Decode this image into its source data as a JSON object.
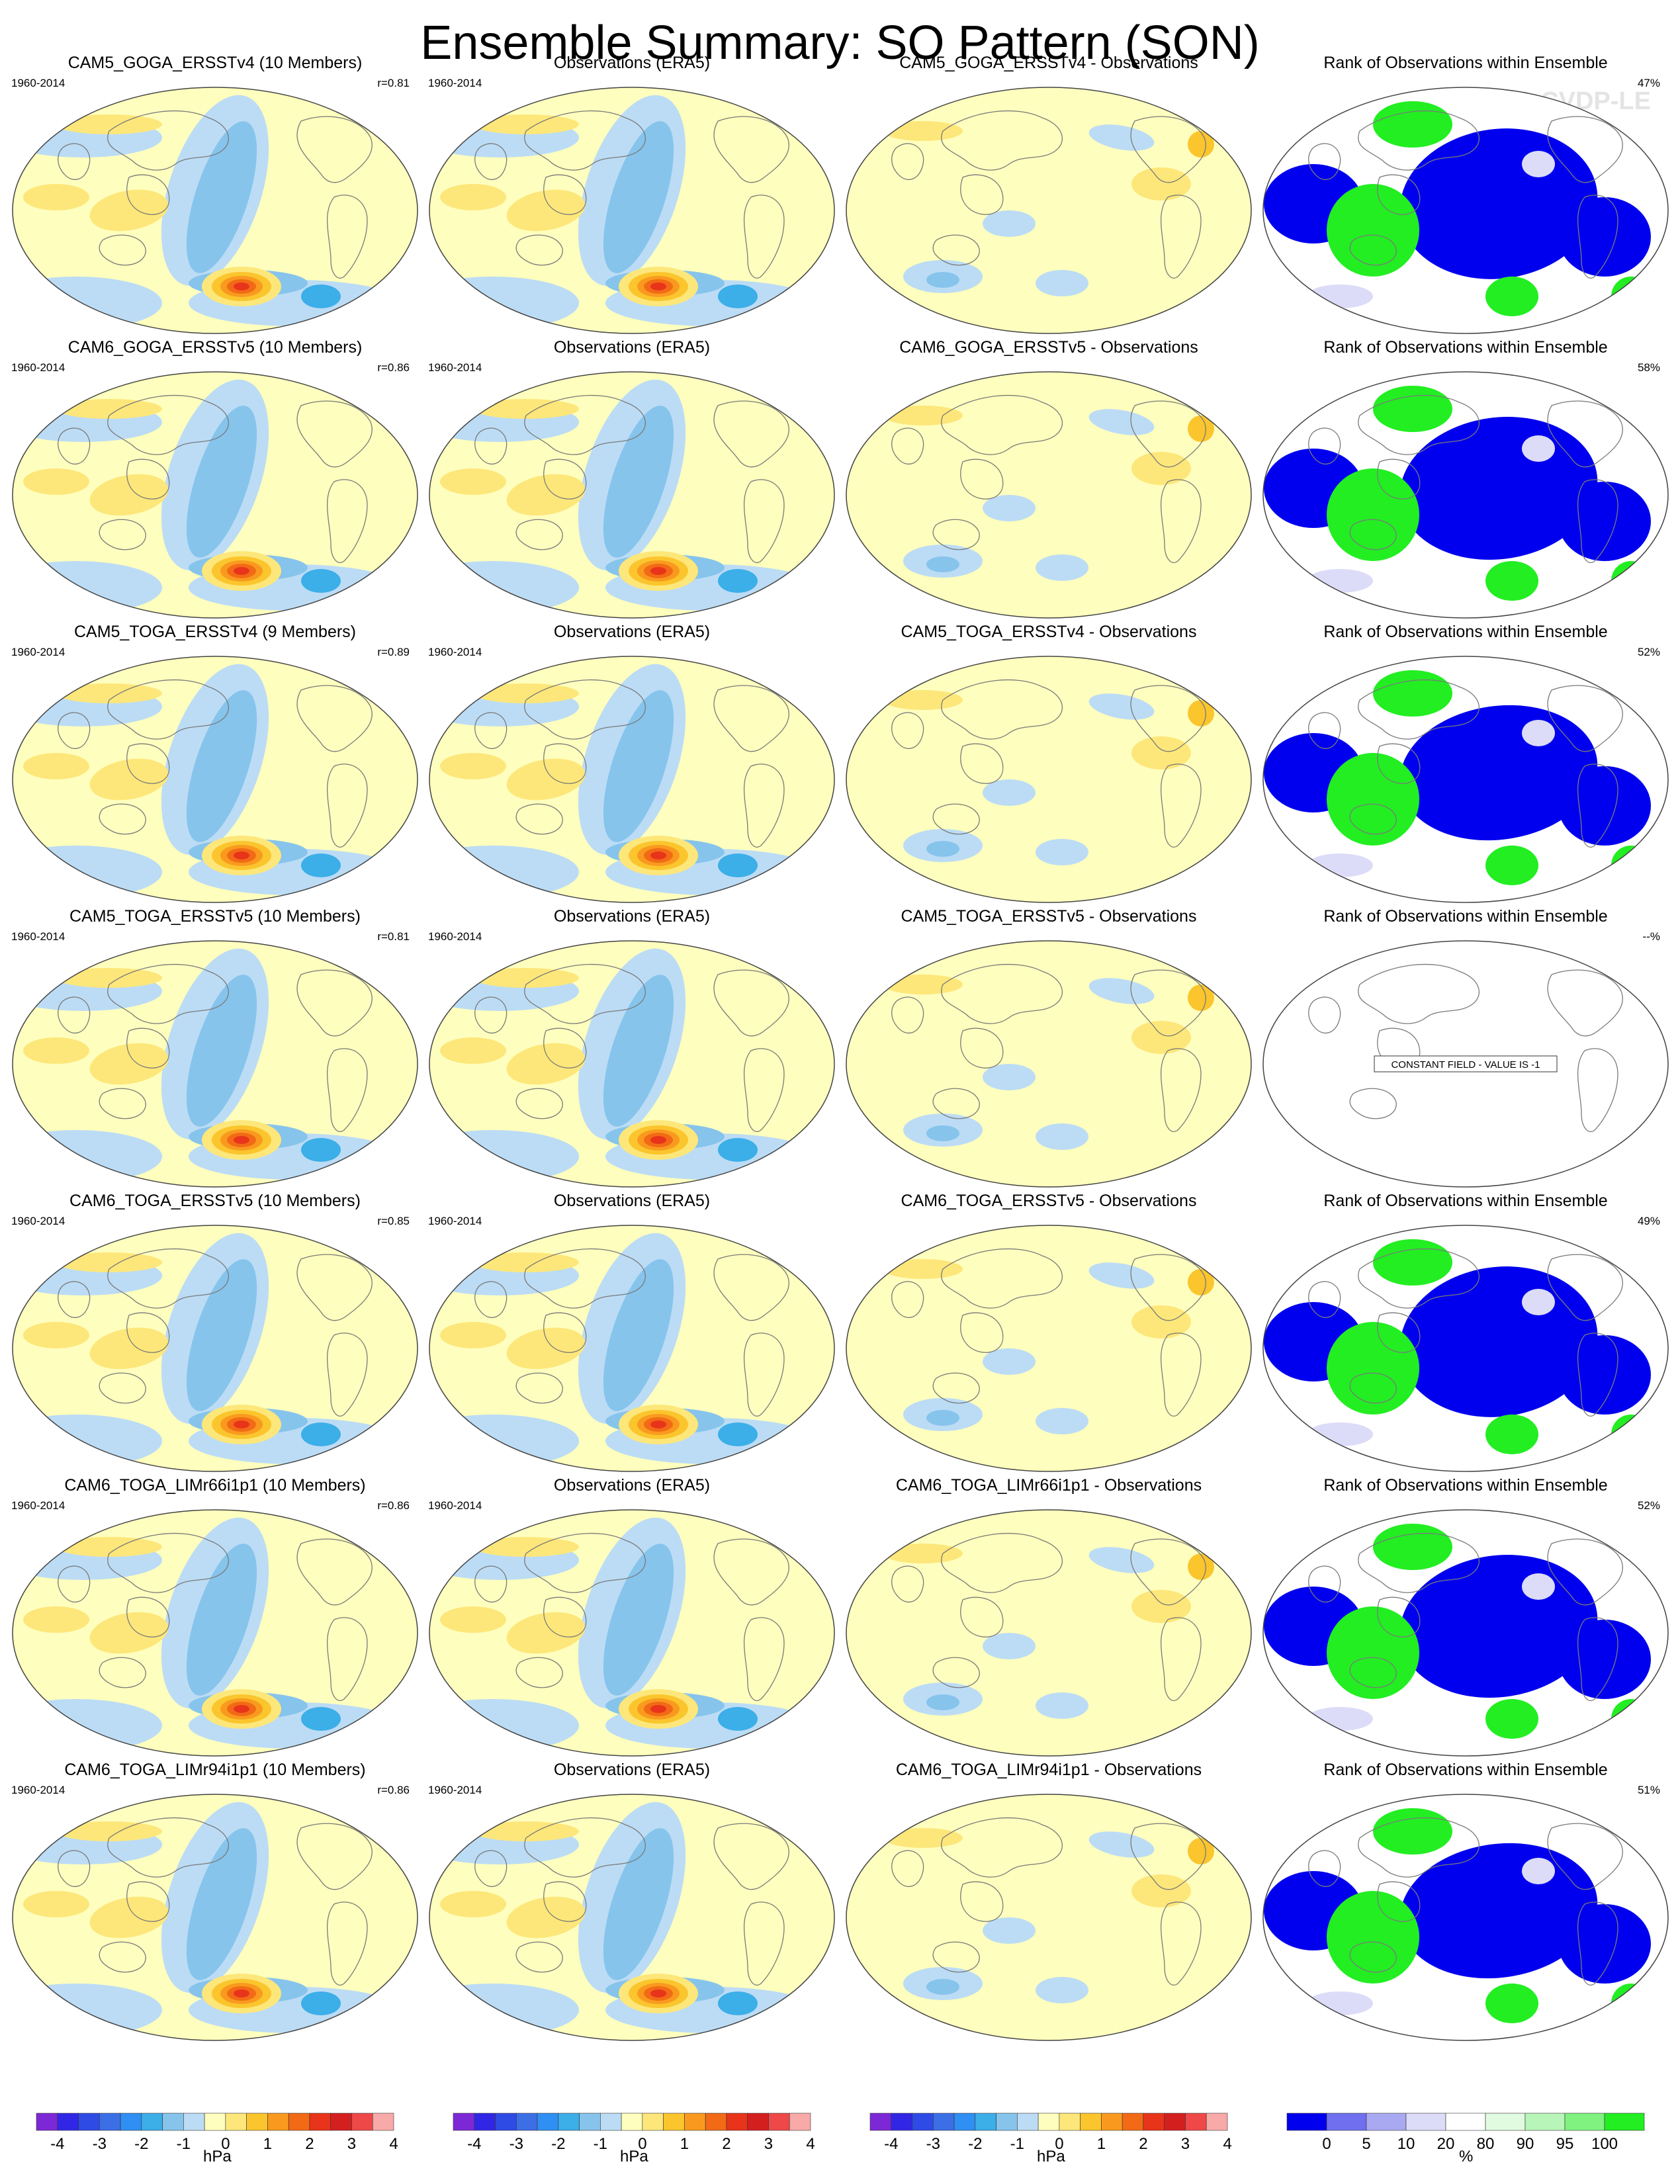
{
  "page": {
    "title": "Ensemble Summary: SO Pattern (SON)",
    "watermark": "© CVDP-LE"
  },
  "period": "1960-2014",
  "rank_title": "Observations within Ensemble",
  "rows": [
    {
      "ensemble": "CAM5_GOGA_ERSSTv4 (10 Members)",
      "r": "r=0.81",
      "obs": "Observations (ERA5)",
      "diff": "CAM5_GOGA_ERSSTv4 - Observations",
      "rank": "Rank of Observations within Ensemble",
      "pct": "47%"
    },
    {
      "ensemble": "CAM6_GOGA_ERSSTv5 (10 Members)",
      "r": "r=0.86",
      "obs": "Observations (ERA5)",
      "diff": "CAM6_GOGA_ERSSTv5 - Observations",
      "rank": "Rank of Observations within Ensemble",
      "pct": "58%"
    },
    {
      "ensemble": "CAM5_TOGA_ERSSTv4 (9 Members)",
      "r": "r=0.89",
      "obs": "Observations (ERA5)",
      "diff": "CAM5_TOGA_ERSSTv4 - Observations",
      "rank": "Rank of Observations within Ensemble",
      "pct": "52%"
    },
    {
      "ensemble": "CAM5_TOGA_ERSSTv5 (10 Members)",
      "r": "r=0.81",
      "obs": "Observations (ERA5)",
      "diff": "CAM5_TOGA_ERSSTv5 - Observations",
      "rank": "Rank of Observations within Ensemble",
      "pct": "--%",
      "constant": "CONSTANT FIELD - VALUE IS -1"
    },
    {
      "ensemble": "CAM6_TOGA_ERSSTv5 (10 Members)",
      "r": "r=0.85",
      "obs": "Observations (ERA5)",
      "diff": "CAM6_TOGA_ERSSTv5 - Observations",
      "rank": "Rank of Observations within Ensemble",
      "pct": "49%"
    },
    {
      "ensemble": "CAM6_TOGA_LIMr66i1p1 (10 Members)",
      "r": "r=0.86",
      "obs": "Observations (ERA5)",
      "diff": "CAM6_TOGA_LIMr66i1p1 - Observations",
      "rank": "Rank of Observations within Ensemble",
      "pct": "52%"
    },
    {
      "ensemble": "CAM6_TOGA_LIMr94i1p1 (10 Members)",
      "r": "r=0.86",
      "obs": "Observations (ERA5)",
      "diff": "CAM6_TOGA_LIMr94i1p1 - Observations",
      "rank": "Rank of Observations within Ensemble",
      "pct": "51%"
    }
  ],
  "colorbars": {
    "hpa": {
      "unit": "hPa",
      "labels": [
        "-4",
        "-3",
        "-2",
        "-1",
        "0",
        "1",
        "2",
        "3",
        "4"
      ],
      "colors": [
        "#7d28d6",
        "#3226e6",
        "#2e4be6",
        "#3c6ee6",
        "#2f8ff2",
        "#3caee8",
        "#86c4ec",
        "#bcdcf5",
        "#fefebe",
        "#fde77a",
        "#fbc52d",
        "#f99a1f",
        "#f26a16",
        "#e8341a",
        "#d41f1f",
        "#ee4848",
        "#f8aaa8"
      ]
    },
    "rank": {
      "unit": "%",
      "labels": [
        "0",
        "5",
        "10",
        "20",
        "80",
        "90",
        "95",
        "100"
      ],
      "colors": [
        "#0000ee",
        "#6f6ff0",
        "#a9a9f2",
        "#dcdcf8",
        "#ffffff",
        "#e0fbe0",
        "#b8f5b8",
        "#7ff27f",
        "#22ee22"
      ]
    }
  },
  "colors": {
    "positive": "#fde77a",
    "negative": "#bcdcf5",
    "rank_low": "#0000ee",
    "rank_high": "#22ee22"
  }
}
